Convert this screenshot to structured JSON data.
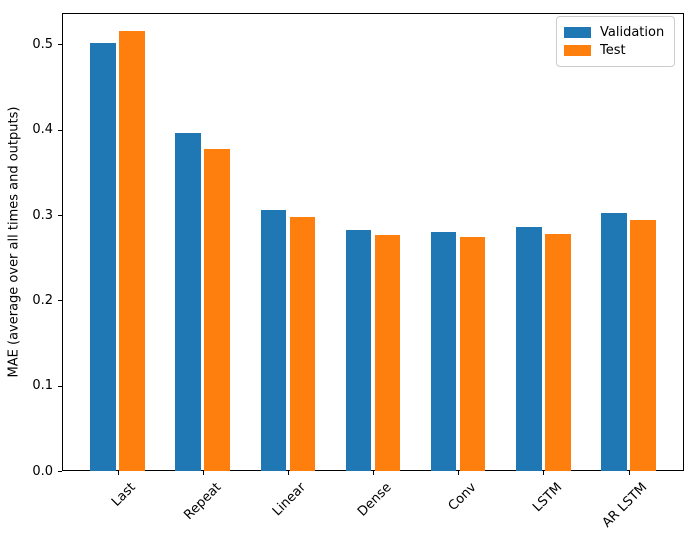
{
  "chart_data": {
    "type": "bar",
    "title": "",
    "xlabel": "",
    "ylabel": "MAE (average over all times and outputs)",
    "categories": [
      "Last",
      "Repeat",
      "Linear",
      "Dense",
      "Conv",
      "LSTM",
      "AR LSTM"
    ],
    "series": [
      {
        "name": "Validation",
        "color": "#1f77b4",
        "values": [
          0.501,
          0.396,
          0.306,
          0.282,
          0.28,
          0.286,
          0.302
        ]
      },
      {
        "name": "Test",
        "color": "#ff7f0e",
        "values": [
          0.515,
          0.377,
          0.298,
          0.276,
          0.274,
          0.278,
          0.294
        ]
      }
    ],
    "ylim": [
      0,
      0.536
    ],
    "yticks": [
      "0.0",
      "0.1",
      "0.2",
      "0.3",
      "0.4",
      "0.5"
    ],
    "xtick_rotation": 45,
    "grid": false,
    "legend": {
      "position": "upper right",
      "entries": [
        "Validation",
        "Test"
      ]
    },
    "bar_width": 0.3,
    "bar_offsets": [
      -0.17,
      0.17
    ]
  }
}
